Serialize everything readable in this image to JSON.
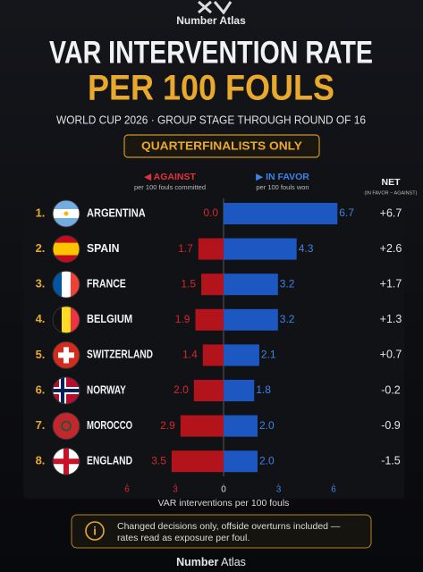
{
  "chart_data": {
    "type": "diverging_bar",
    "logo_text": "Number Atlas",
    "title": "VAR INTERVENTION RATE",
    "title_line2": "PER 100 FOULS",
    "subtitle": "WORLD CUP 2026 · GROUP STAGE THROUGH ROUND OF 16",
    "badge": "QUARTERFINALISTS ONLY",
    "ranks": [
      "1.",
      "2.",
      "3.",
      "4.",
      "5.",
      "6.",
      "7.",
      "8."
    ],
    "categories": [
      "ARGENTINA",
      "SPAIN",
      "FRANCE",
      "BELGIUM",
      "SWITZERLAND",
      "NORWAY",
      "MOROCCO",
      "ENGLAND"
    ],
    "series": [
      {
        "name": "◀ AGAINST",
        "note": "per 100 fouls committed",
        "color": "#b3141c",
        "label_color": "#d8262e",
        "direction": "left",
        "values": [
          0.0,
          1.7,
          1.5,
          1.9,
          1.4,
          2.0,
          2.9,
          3.5
        ],
        "value_labels": [
          "0.0",
          "1.7",
          "1.5",
          "1.9",
          "1.4",
          "2.0",
          "2.9",
          "3.5"
        ]
      },
      {
        "name": "▶ IN FAVOR",
        "note": "per 100 fouls won",
        "color": "#1d58c2",
        "label_color": "#3f82e6",
        "direction": "right",
        "values": [
          6.7,
          4.3,
          3.2,
          3.2,
          2.1,
          1.8,
          2.0,
          2.0
        ],
        "value_labels": [
          "6.7",
          "4.3",
          "3.2",
          "3.2",
          "2.1",
          "1.8",
          "2.0",
          "2.0"
        ]
      },
      {
        "name": "NET",
        "note": "(IN FAVOR − AGAINST)",
        "color": "#e6e6e6",
        "direction": "text",
        "values": [
          6.7,
          2.6,
          1.7,
          1.3,
          0.7,
          -0.2,
          -0.9,
          -1.5
        ],
        "value_labels": [
          "+6.7",
          "+2.6",
          "+1.7",
          "+1.3",
          "+0.7",
          "-0.2",
          "-0.9",
          "-1.5"
        ]
      }
    ],
    "xlim": [
      -7,
      7
    ],
    "xticks": [
      {
        "value": -6,
        "label": "6"
      },
      {
        "value": -3,
        "label": "3"
      },
      0,
      3,
      6
    ],
    "x_label": "VAR interventions per 100 fouls",
    "note_lines": [
      "Changed decisions only, offside overturns included —",
      "rates read as exposure per foul."
    ],
    "footer_bold": "Number",
    "footer_light": "Atlas"
  }
}
